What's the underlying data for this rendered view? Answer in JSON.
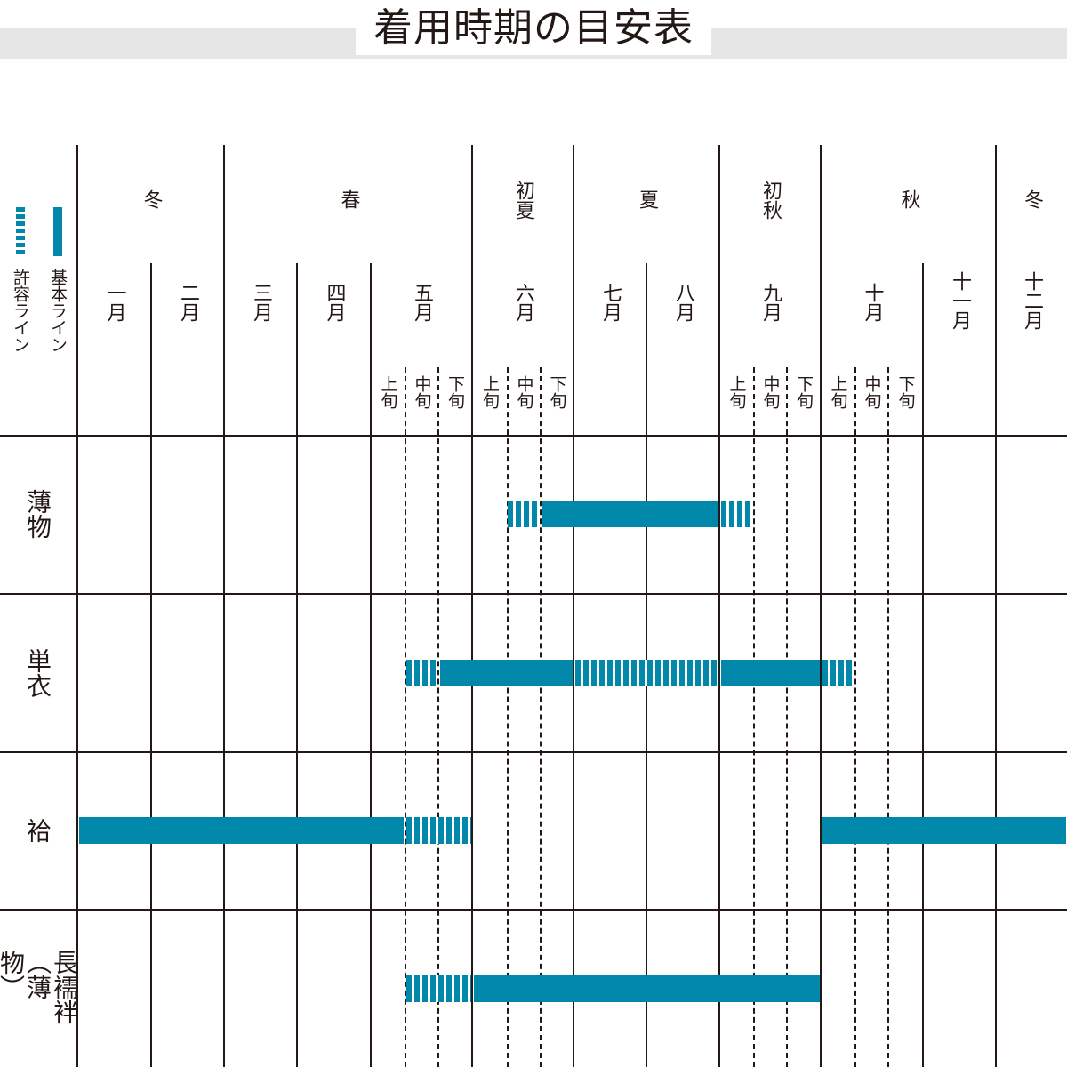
{
  "title": "着用時期の目安表",
  "legend": {
    "basic": "基本ライン",
    "allowed": "許容ライン",
    "color": "#0087aa"
  },
  "seasons": [
    "冬",
    "春",
    "初夏",
    "夏",
    "初秋",
    "秋",
    "冬"
  ],
  "months": [
    "一月",
    "二月",
    "三月",
    "四月",
    "五月",
    "六月",
    "七月",
    "八月",
    "九月",
    "十月",
    "十一月",
    "十二月"
  ],
  "dekads": [
    "上旬",
    "中旬",
    "下旬"
  ],
  "chart_data": {
    "type": "gantt",
    "title": "着用時期の目安表",
    "unit": "month (1 = 一月 start; thirds = 上旬/中旬/下旬)",
    "rows": [
      {
        "label": "薄物",
        "segments": [
          {
            "kind": "allowed",
            "from": 6.33,
            "to": 6.67
          },
          {
            "kind": "basic",
            "from": 6.67,
            "to": 9.0
          },
          {
            "kind": "allowed",
            "from": 9.0,
            "to": 9.33
          }
        ]
      },
      {
        "label": "単衣",
        "segments": [
          {
            "kind": "allowed",
            "from": 5.33,
            "to": 5.67
          },
          {
            "kind": "basic",
            "from": 5.67,
            "to": 7.0
          },
          {
            "kind": "allowed",
            "from": 7.0,
            "to": 9.0
          },
          {
            "kind": "basic",
            "from": 9.0,
            "to": 10.0
          },
          {
            "kind": "allowed",
            "from": 10.0,
            "to": 10.33
          }
        ]
      },
      {
        "label": "袷",
        "segments": [
          {
            "kind": "basic",
            "from": 1.0,
            "to": 5.33
          },
          {
            "kind": "allowed",
            "from": 5.33,
            "to": 6.0
          },
          {
            "kind": "basic",
            "from": 10.0,
            "to": 13.0
          }
        ]
      },
      {
        "label": "長襦袢（薄物）",
        "segments": [
          {
            "kind": "allowed",
            "from": 5.33,
            "to": 6.0
          },
          {
            "kind": "basic",
            "from": 6.0,
            "to": 10.0
          }
        ]
      }
    ]
  }
}
